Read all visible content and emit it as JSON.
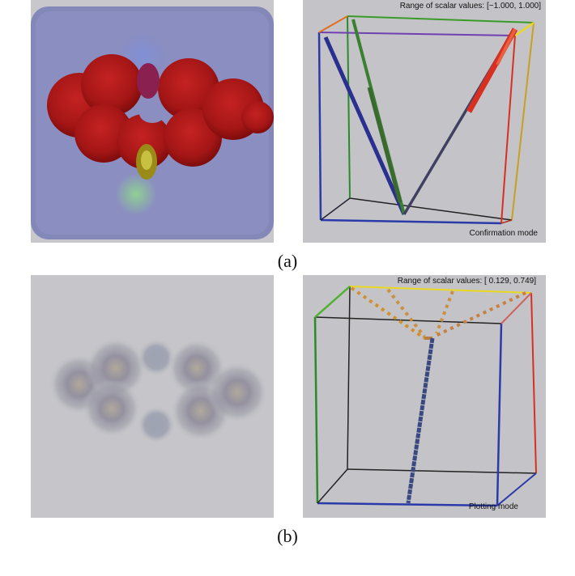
{
  "figure": {
    "caption_a": "(a)",
    "caption_b": "(b)",
    "panel_a_right": {
      "range_label": "Range of scalar values:",
      "range_value": "[−1.000,  1.000]",
      "mode_label": "Confirmation mode"
    },
    "panel_b_right": {
      "range_label": "Range of scalar values:",
      "range_value": "[ 0.129,  0.749]",
      "mode_label": "Plotting mode"
    }
  },
  "colors": {
    "panel_bg": "#c4c4c8",
    "volume_red": "#a81818",
    "cube_blue": "#2a3aa8",
    "cube_green": "#3a9a2a",
    "cube_yellow": "#e8e020",
    "cube_red": "#d83020"
  }
}
